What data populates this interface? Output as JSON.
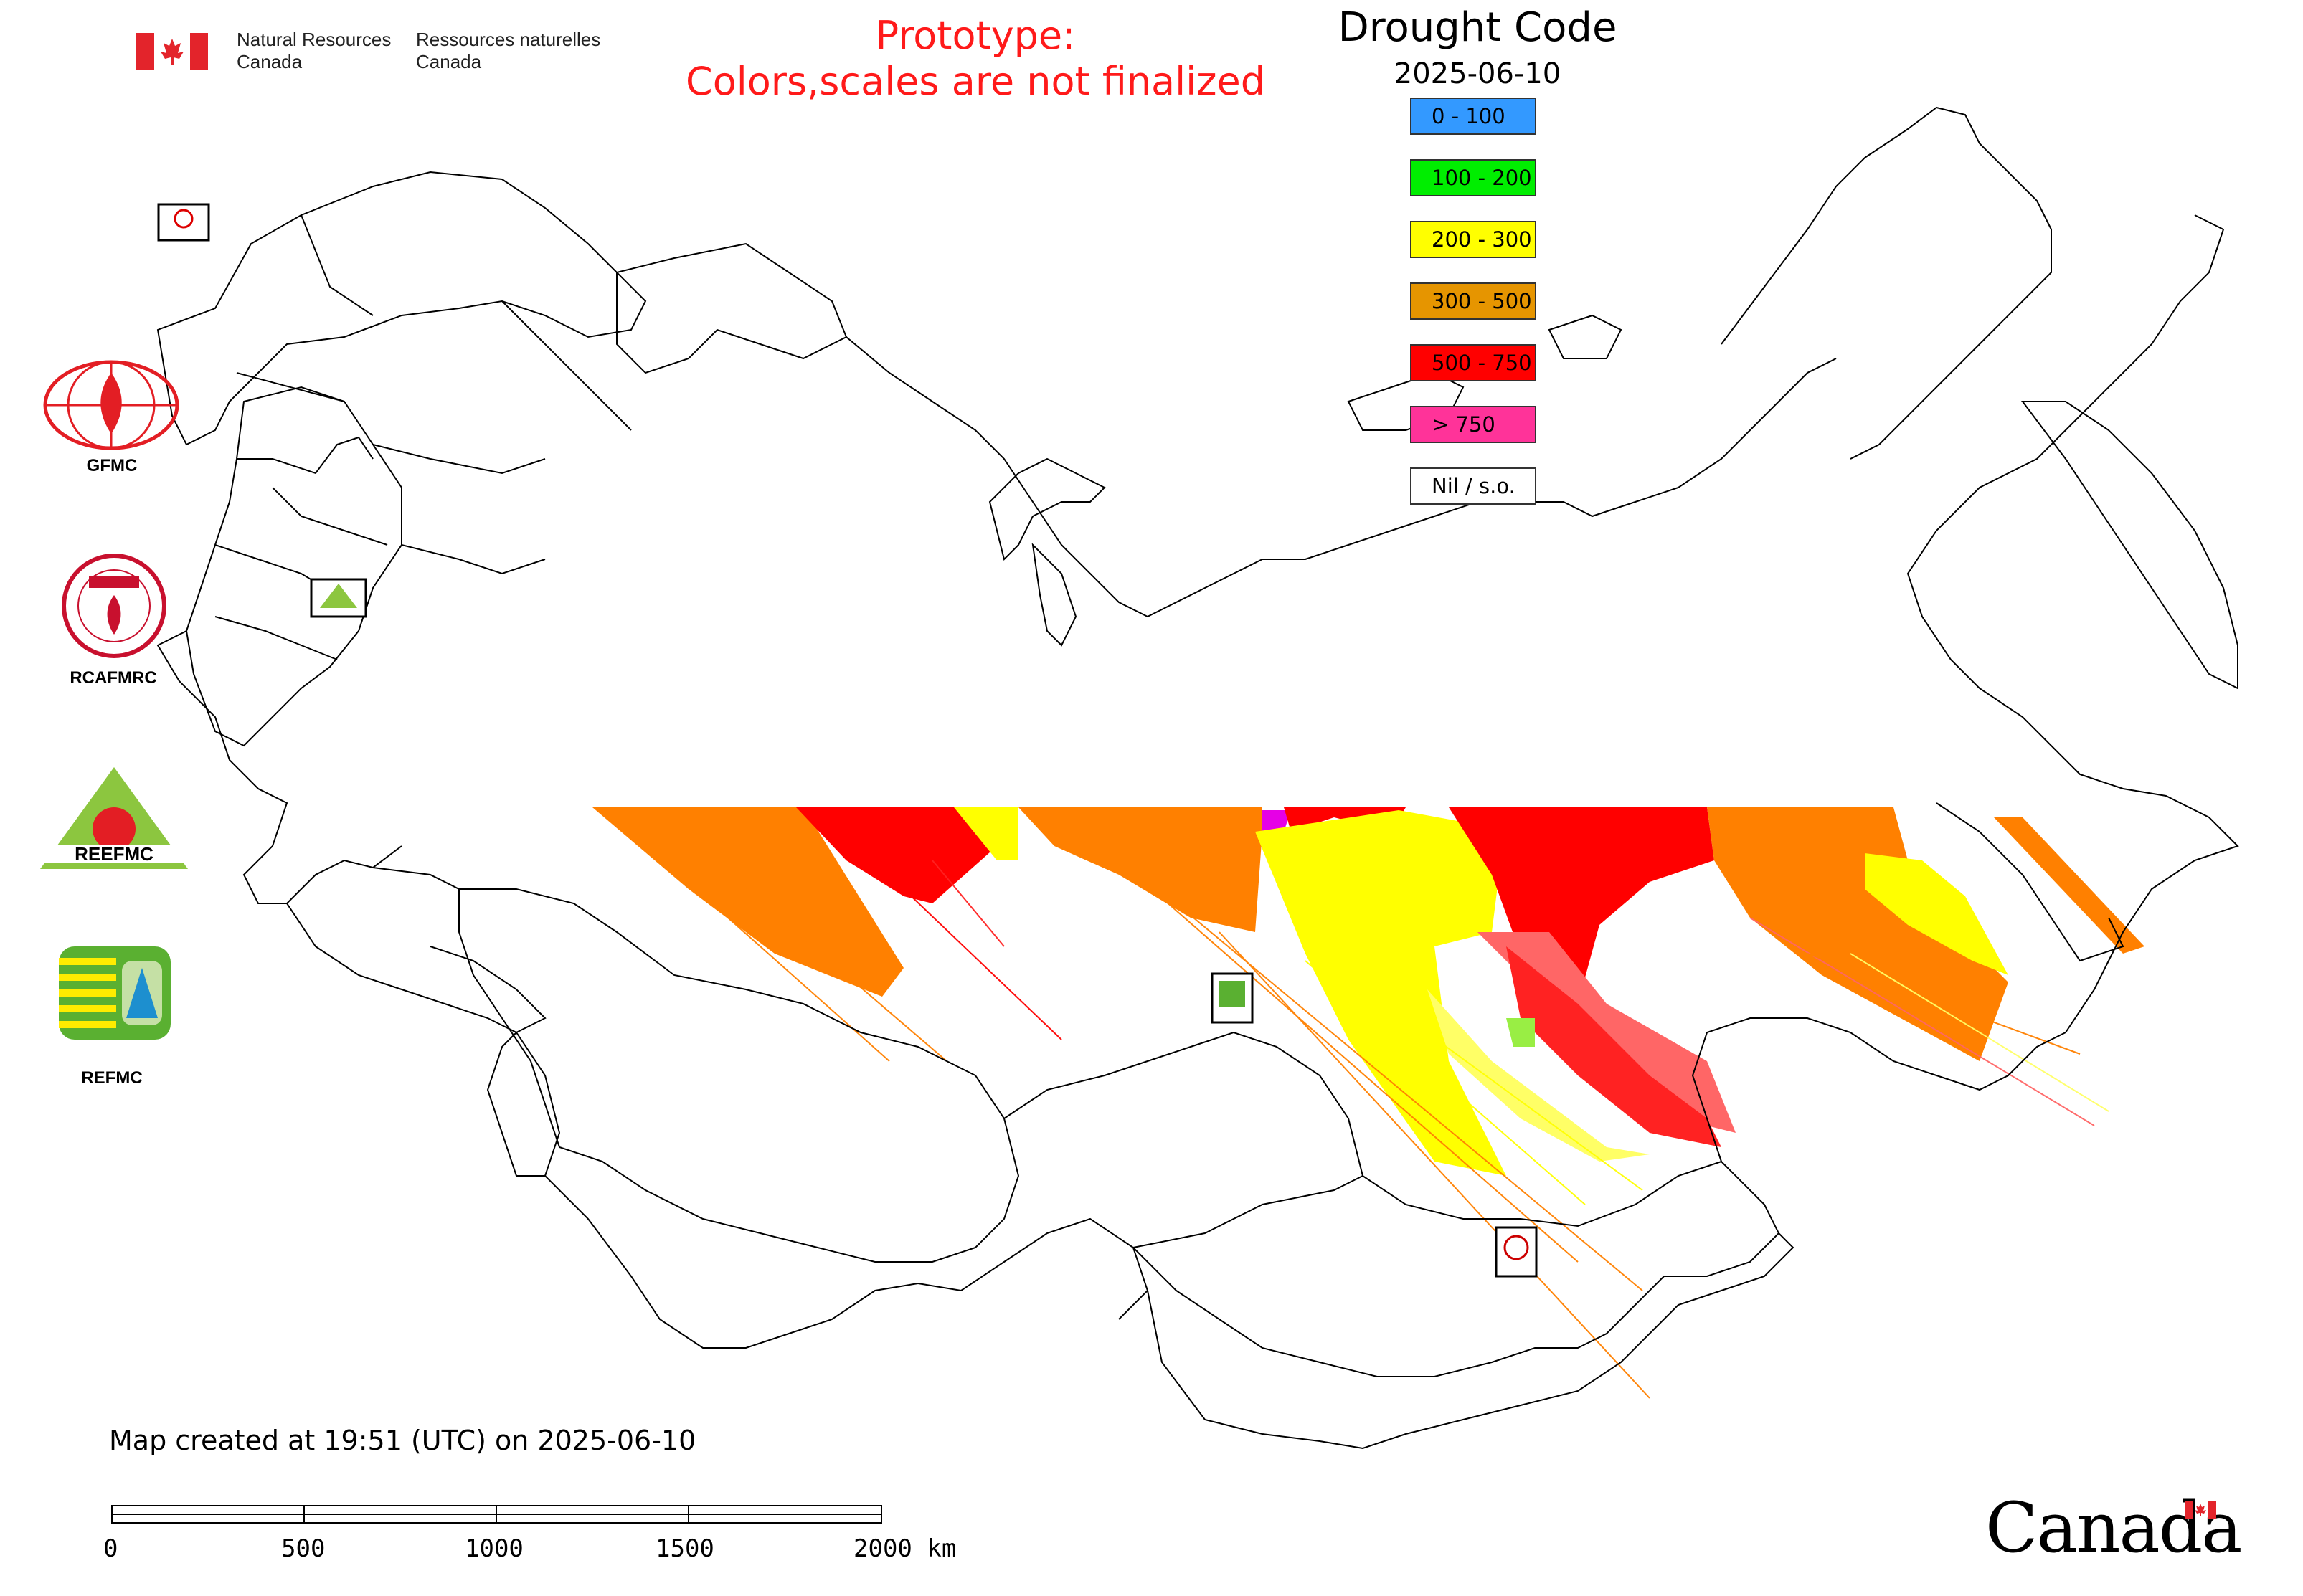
{
  "header": {
    "org_en_line1": "Natural Resources",
    "org_en_line2": "Canada",
    "org_fr_line1": "Ressources naturelles",
    "org_fr_line2": "Canada",
    "prototype_line1": "Prototype:",
    "prototype_line2": "Colors,scales are not finalized"
  },
  "legend": {
    "title": "Drought Code",
    "date": "2025-06-10",
    "items": [
      {
        "label": "0 - 100",
        "color": "#3399ff"
      },
      {
        "label": "100 - 200",
        "color": "#00ee00"
      },
      {
        "label": "200 - 300",
        "color": "#ffff00"
      },
      {
        "label": "300 - 500",
        "color": "#e69500"
      },
      {
        "label": "500 - 750",
        "color": "#ff0000"
      },
      {
        "label": "> 750",
        "color": "#ff3399"
      },
      {
        "label": "Nil / s.o.",
        "color": "#ffffff"
      }
    ]
  },
  "logos": {
    "gfmc": "GFMC",
    "rcafmrc": "RCAFMRC",
    "reefmc": "REEFMC",
    "refmc": "REFMC"
  },
  "footer": {
    "created": "Map created at 19:51 (UTC) on 2025-06-10",
    "scale_labels": [
      "0",
      "500",
      "1000",
      "1500",
      "2000 km"
    ],
    "wordmark": "Canada"
  },
  "colors": {
    "prototype_text": "#ff1a1a",
    "outline": "#000000"
  }
}
